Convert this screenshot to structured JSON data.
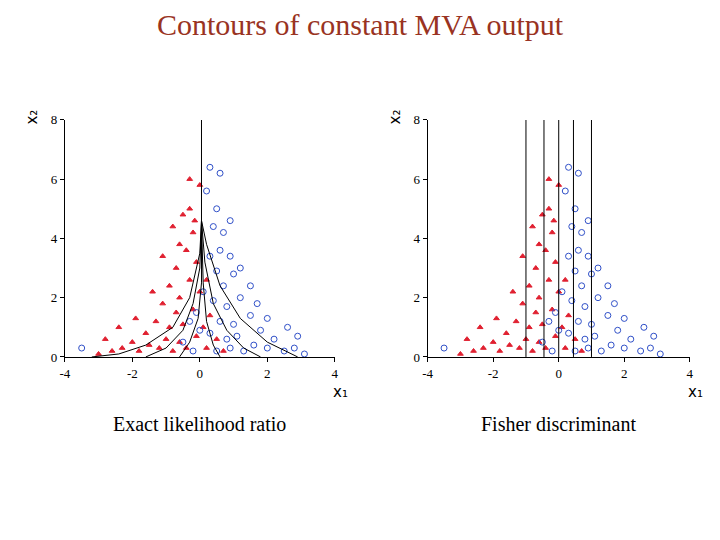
{
  "title": "Contours of constant MVA output",
  "title_color": "#993322",
  "chart_data": [
    {
      "type": "scatter",
      "title": "Exact likelihood ratio",
      "xlabel": "x₁",
      "ylabel": "x₂",
      "xlim": [
        -4,
        4
      ],
      "ylim": [
        0,
        8
      ],
      "xticks": [
        -4,
        -2,
        0,
        2,
        4
      ],
      "yticks": [
        0,
        2,
        4,
        6,
        8
      ],
      "grid": false,
      "series": [
        {
          "type": "scatter",
          "color": "#e02030",
          "marker": "triangle-up",
          "x": [
            -3.0,
            -2.6,
            -2.3,
            -2.0,
            -1.8,
            -1.6,
            -1.5,
            -1.3,
            -1.2,
            -1.1,
            -1.0,
            -0.9,
            -0.9,
            -0.8,
            -0.7,
            -0.7,
            -0.6,
            -0.6,
            -0.5,
            -0.5,
            -0.4,
            -0.4,
            -0.3,
            -0.3,
            -0.2,
            -0.2,
            -0.1,
            -0.1,
            0.0,
            0.0,
            0.1,
            0.2,
            0.3,
            0.5,
            0.7,
            -2.4,
            -1.9,
            -1.4,
            -0.8,
            -0.3,
            -1.1,
            -0.6,
            0.2,
            -2.8,
            -0.15
          ],
          "y": [
            0.1,
            0.2,
            0.3,
            0.5,
            0.2,
            0.8,
            0.4,
            1.2,
            0.3,
            1.8,
            0.6,
            2.4,
            1.0,
            0.2,
            3.0,
            1.5,
            0.5,
            2.0,
            4.8,
            1.1,
            3.6,
            0.3,
            2.6,
            5.0,
            1.6,
            4.2,
            0.7,
            3.2,
            5.8,
            2.2,
            1.0,
            0.3,
            1.4,
            0.6,
            0.2,
            1.0,
            1.3,
            2.2,
            4.4,
            6.0,
            3.4,
            3.8,
            2.6,
            0.6,
            4.6
          ]
        },
        {
          "type": "scatter",
          "color": "#3050c8",
          "marker": "circle-open",
          "x": [
            3.1,
            2.8,
            2.5,
            2.2,
            2.0,
            1.8,
            1.6,
            1.5,
            1.3,
            1.2,
            1.1,
            1.0,
            1.0,
            0.9,
            0.9,
            0.8,
            0.8,
            0.7,
            0.7,
            0.6,
            0.6,
            0.5,
            0.5,
            0.5,
            0.4,
            0.4,
            0.3,
            0.3,
            0.2,
            0.1,
            0.0,
            -0.2,
            -0.3,
            -0.5,
            -3.5,
            2.6,
            2.0,
            1.5,
            0.9,
            0.6,
            1.2,
            0.3,
            -0.1,
            2.9,
            1.7
          ],
          "y": [
            0.1,
            0.3,
            0.2,
            0.6,
            0.3,
            0.9,
            0.4,
            1.4,
            0.2,
            2.0,
            0.7,
            2.8,
            1.1,
            0.3,
            3.4,
            1.7,
            0.6,
            2.4,
            4.2,
            1.2,
            3.6,
            0.2,
            2.9,
            5.0,
            1.9,
            4.4,
            0.8,
            3.4,
            5.6,
            2.2,
            0.9,
            0.2,
            1.2,
            0.5,
            0.3,
            1.0,
            1.3,
            2.4,
            4.6,
            6.2,
            3.0,
            6.4,
            1.5,
            0.7,
            1.8
          ]
        },
        {
          "type": "line",
          "color": "#000000",
          "line_style": "solid",
          "x": [
            0.05,
            0.05,
            0.0,
            -0.3,
            -0.8,
            -1.6,
            -2.4,
            -3.2
          ],
          "y": [
            8,
            4.6,
            3.5,
            2.0,
            1.0,
            0.4,
            0.1,
            0
          ]
        },
        {
          "type": "line",
          "color": "#000000",
          "line_style": "solid",
          "x": [
            0.05,
            0.0,
            -0.2,
            -0.5,
            -1.0,
            -1.6
          ],
          "y": [
            4.6,
            3.0,
            1.8,
            0.9,
            0.3,
            0
          ]
        },
        {
          "type": "line",
          "color": "#000000",
          "line_style": "solid",
          "x": [
            0.05,
            0.05,
            -0.05,
            -0.3,
            -0.6
          ],
          "y": [
            4.6,
            2.5,
            1.3,
            0.5,
            0
          ]
        },
        {
          "type": "line",
          "color": "#000000",
          "line_style": "solid",
          "x": [
            0.05,
            0.1,
            0.2,
            0.4,
            0.6
          ],
          "y": [
            4.6,
            2.5,
            1.2,
            0.4,
            0
          ]
        },
        {
          "type": "line",
          "color": "#000000",
          "line_style": "solid",
          "x": [
            0.05,
            0.15,
            0.4,
            0.8,
            1.3,
            1.8
          ],
          "y": [
            4.6,
            3.2,
            1.8,
            0.9,
            0.3,
            0
          ]
        },
        {
          "type": "line",
          "color": "#000000",
          "line_style": "solid",
          "x": [
            0.05,
            0.2,
            0.6,
            1.2,
            2.0,
            2.9
          ],
          "y": [
            4.6,
            3.8,
            2.4,
            1.3,
            0.5,
            0
          ]
        }
      ]
    },
    {
      "type": "scatter",
      "title": "Fisher discriminant",
      "xlabel": "x₁",
      "ylabel": "x₂",
      "xlim": [
        -4,
        4
      ],
      "ylim": [
        0,
        8
      ],
      "xticks": [
        -4,
        -2,
        0,
        2,
        4
      ],
      "yticks": [
        0,
        2,
        4,
        6,
        8
      ],
      "grid": false,
      "series": [
        {
          "type": "scatter",
          "color": "#e02030",
          "marker": "triangle-up",
          "x": [
            -3.0,
            -2.6,
            -2.3,
            -2.0,
            -1.8,
            -1.6,
            -1.5,
            -1.3,
            -1.2,
            -1.1,
            -1.0,
            -0.9,
            -0.9,
            -0.8,
            -0.7,
            -0.7,
            -0.6,
            -0.6,
            -0.5,
            -0.5,
            -0.4,
            -0.4,
            -0.3,
            -0.3,
            -0.2,
            -0.2,
            -0.1,
            -0.1,
            0.0,
            0.0,
            0.1,
            0.2,
            0.3,
            0.5,
            0.7,
            -2.4,
            -1.9,
            -1.4,
            -0.8,
            -0.3,
            -1.1,
            -0.6,
            0.2,
            -2.8,
            -0.15
          ],
          "y": [
            0.1,
            0.2,
            0.3,
            0.5,
            0.2,
            0.8,
            0.4,
            1.2,
            0.3,
            1.8,
            0.6,
            2.4,
            1.0,
            0.2,
            3.0,
            1.5,
            0.5,
            2.0,
            4.8,
            1.1,
            3.6,
            0.3,
            2.6,
            5.0,
            1.6,
            4.2,
            0.7,
            3.2,
            5.8,
            2.2,
            1.0,
            0.3,
            1.4,
            0.6,
            0.2,
            1.0,
            1.3,
            2.2,
            4.4,
            6.0,
            3.4,
            3.8,
            2.6,
            0.6,
            4.6
          ]
        },
        {
          "type": "scatter",
          "color": "#3050c8",
          "marker": "circle-open",
          "x": [
            3.1,
            2.8,
            2.5,
            2.2,
            2.0,
            1.8,
            1.6,
            1.5,
            1.3,
            1.2,
            1.1,
            1.0,
            1.0,
            0.9,
            0.9,
            0.8,
            0.8,
            0.7,
            0.7,
            0.6,
            0.6,
            0.5,
            0.5,
            0.5,
            0.4,
            0.4,
            0.3,
            0.3,
            0.2,
            0.1,
            0.0,
            -0.2,
            -0.3,
            -0.5,
            -3.5,
            2.6,
            2.0,
            1.5,
            0.9,
            0.6,
            1.2,
            0.3,
            -0.1,
            2.9,
            1.7
          ],
          "y": [
            0.1,
            0.3,
            0.2,
            0.6,
            0.3,
            0.9,
            0.4,
            1.4,
            0.2,
            2.0,
            0.7,
            2.8,
            1.1,
            0.3,
            3.4,
            1.7,
            0.6,
            2.4,
            4.2,
            1.2,
            3.6,
            0.2,
            2.9,
            5.0,
            1.9,
            4.4,
            0.8,
            3.4,
            5.6,
            2.2,
            0.9,
            0.2,
            1.2,
            0.5,
            0.3,
            1.0,
            1.3,
            2.4,
            4.6,
            6.2,
            3.0,
            6.4,
            1.5,
            0.7,
            1.8
          ]
        },
        {
          "type": "line",
          "color": "#000000",
          "line_style": "solid",
          "x": [
            -1.0,
            -1.0
          ],
          "y": [
            0,
            8
          ]
        },
        {
          "type": "line",
          "color": "#000000",
          "line_style": "solid",
          "x": [
            -0.45,
            -0.45
          ],
          "y": [
            0,
            8
          ]
        },
        {
          "type": "line",
          "color": "#000000",
          "line_style": "solid",
          "x": [
            0.0,
            0.0
          ],
          "y": [
            0,
            8
          ]
        },
        {
          "type": "line",
          "color": "#000000",
          "line_style": "solid",
          "x": [
            0.45,
            0.45
          ],
          "y": [
            0,
            8
          ]
        },
        {
          "type": "line",
          "color": "#000000",
          "line_style": "solid",
          "x": [
            1.0,
            1.0
          ],
          "y": [
            0,
            8
          ]
        }
      ]
    }
  ]
}
